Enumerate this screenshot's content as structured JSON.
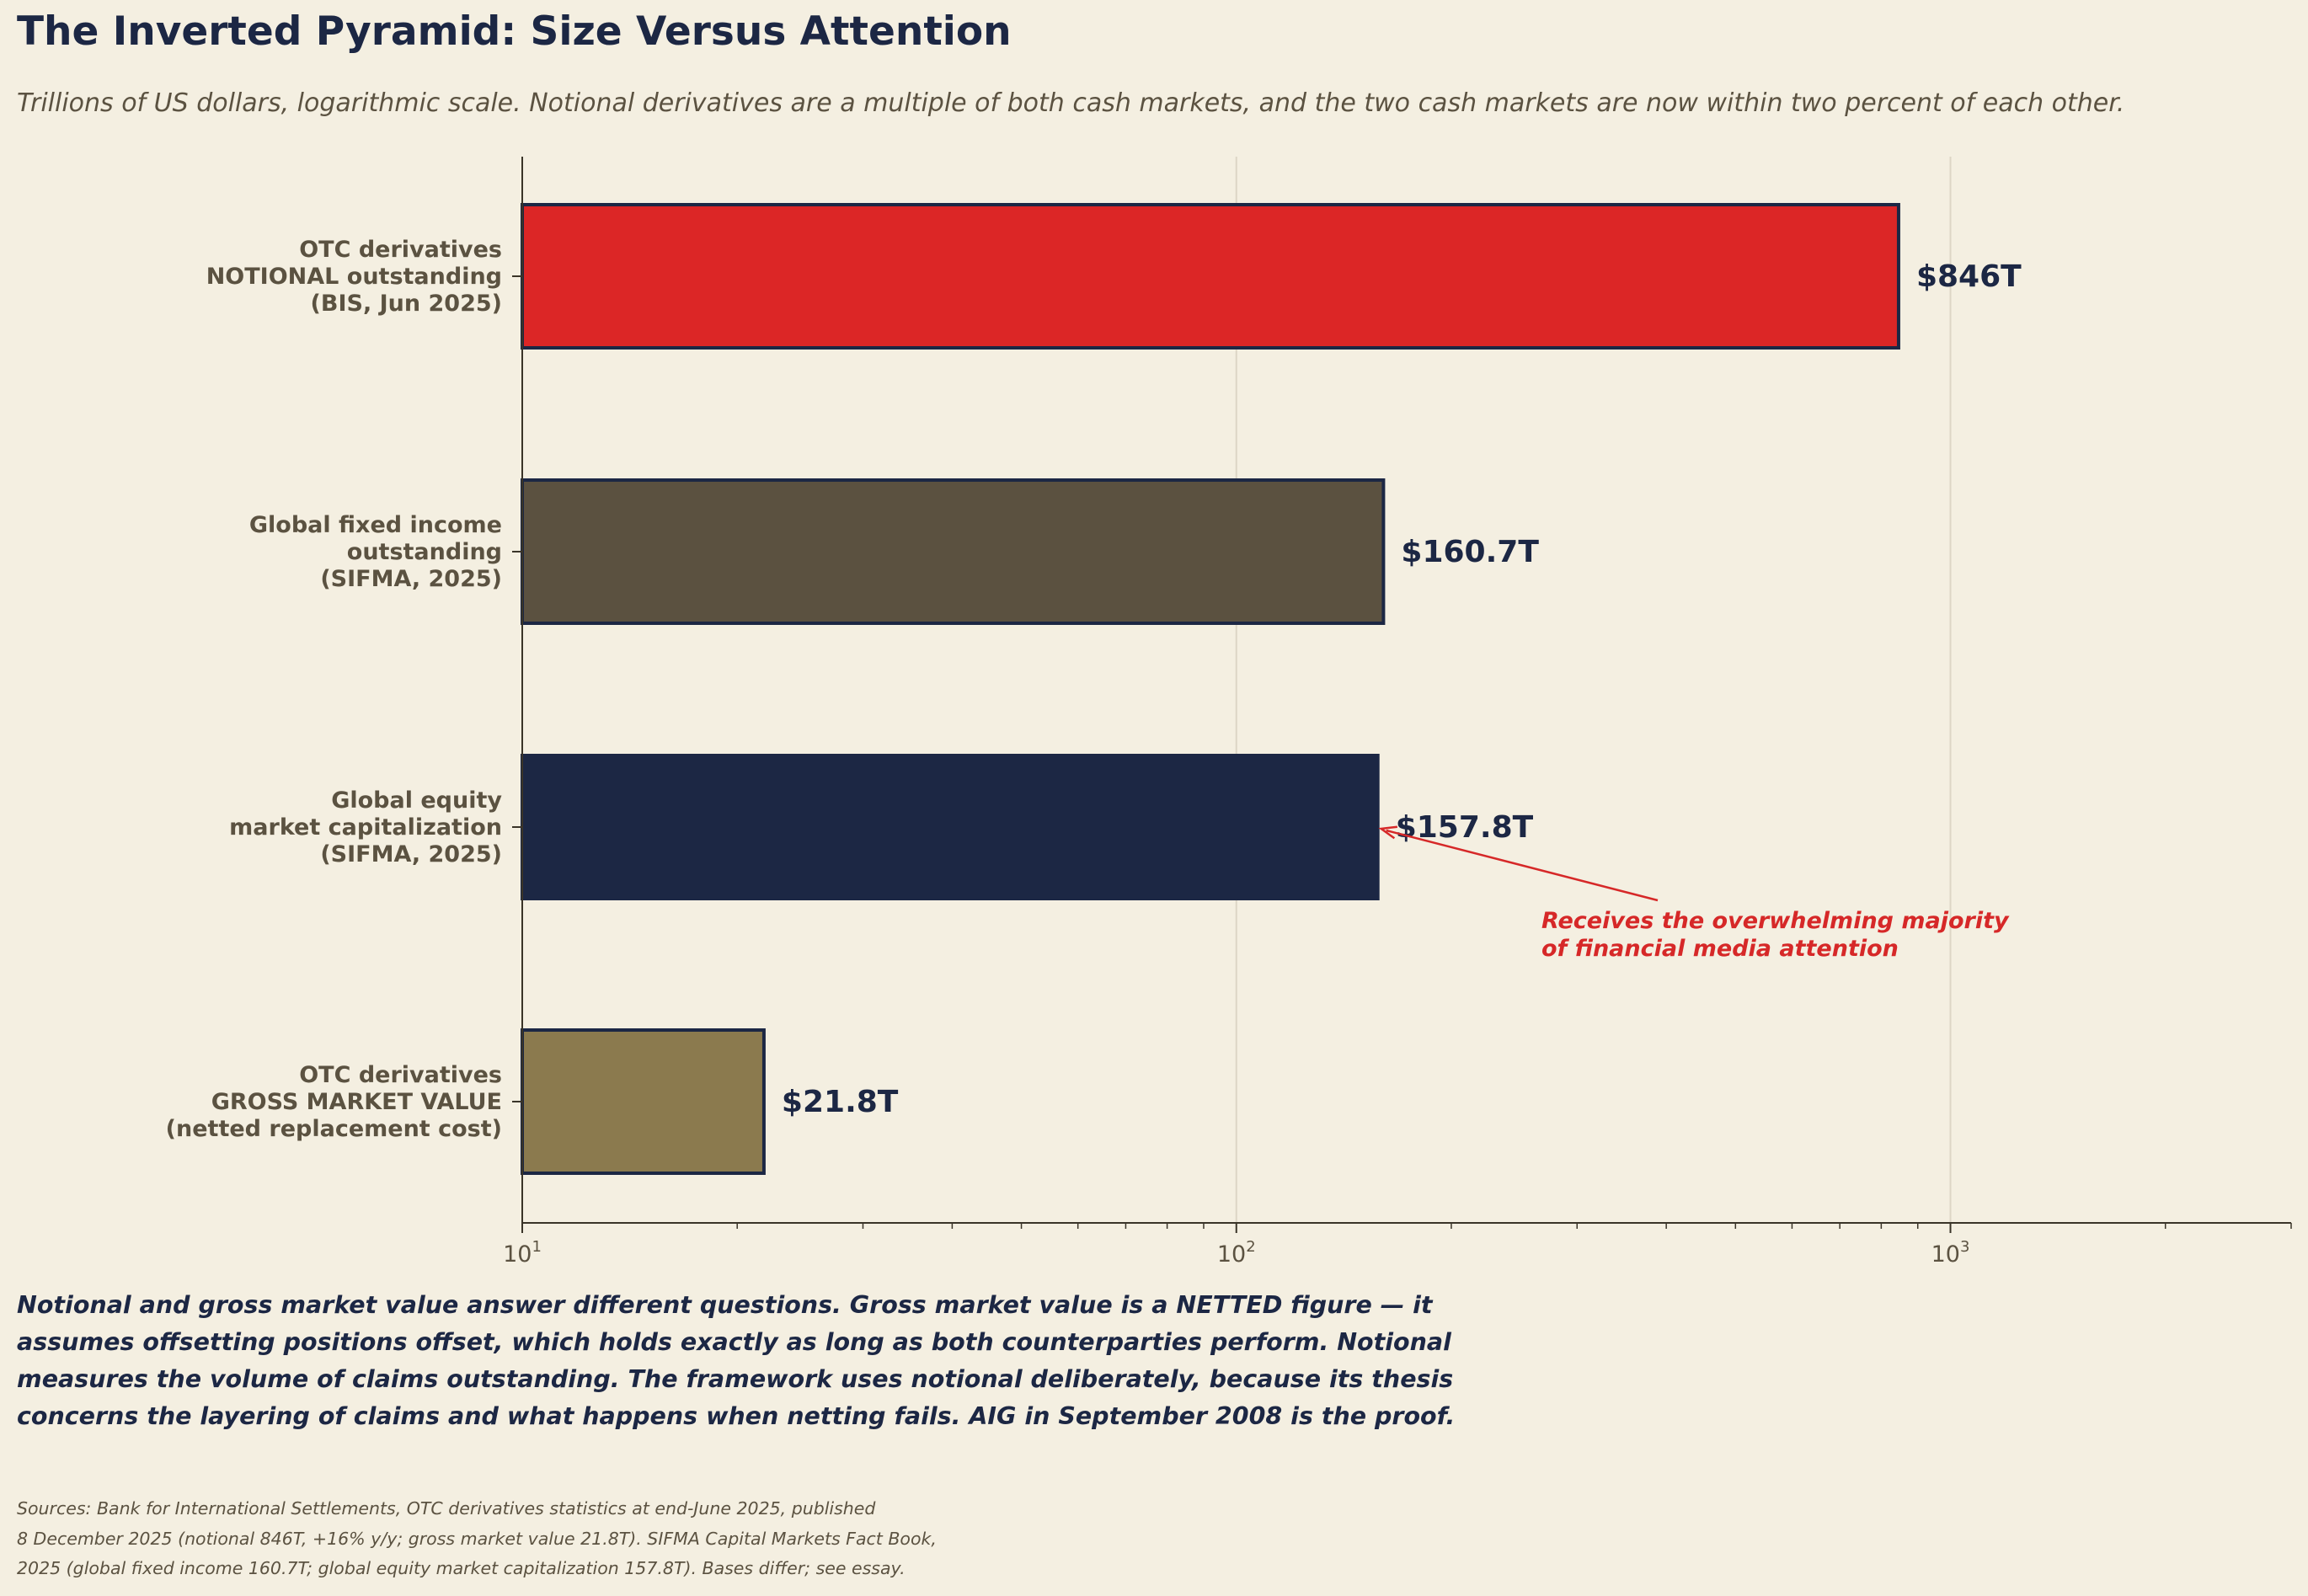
{
  "title": "The Inverted Pyramid: Size Versus Attention",
  "subtitle": "Trillions of US dollars, logarithmic scale. Notional derivatives are a multiple of both cash markets, and the two cash markets are now within two percent of each other.",
  "chart_data": {
    "type": "bar",
    "orientation": "horizontal",
    "xscale": "log",
    "xlim": [
      10,
      3000
    ],
    "grid": "x-major",
    "categories": [
      [
        "OTC derivatives",
        "NOTIONAL outstanding",
        "(BIS, Jun 2025)"
      ],
      [
        "Global fixed income",
        "outstanding",
        "(SIFMA, 2025)"
      ],
      [
        "Global equity",
        "market capitalization",
        "(SIFMA, 2025)"
      ],
      [
        "OTC derivatives",
        "GROSS MARKET VALUE",
        "(netted replacement cost)"
      ]
    ],
    "values": [
      846,
      160.7,
      157.8,
      21.8
    ],
    "value_labels": [
      "$846T",
      "$160.7T",
      "$157.8T",
      "$21.8T"
    ],
    "colors": [
      "#dc2626",
      "#5b5140",
      "#1c2744",
      "#8b7a4e"
    ],
    "x_ticks": [
      {
        "value": 10,
        "base": "10",
        "exp": "1"
      },
      {
        "value": 100,
        "base": "10",
        "exp": "2"
      },
      {
        "value": 1000,
        "base": "10",
        "exp": "3"
      }
    ],
    "annotation": {
      "target_index": 2,
      "lines": [
        "Receives the overwhelming majority",
        "of financial media attention"
      ],
      "color": "#d62828"
    }
  },
  "note_lines": [
    "Notional and gross market value answer different questions. Gross market value is a NETTED figure — it",
    "assumes offsetting positions offset, which holds exactly as long as both counterparties perform. Notional",
    "measures the volume of claims outstanding. The framework uses notional deliberately, because its thesis",
    "concerns the layering of claims and what happens when netting fails. AIG in September 2008 is the proof."
  ],
  "source_lines": [
    "Sources: Bank for International Settlements, OTC derivatives statistics at end-June 2025, published",
    "8 December 2025 (notional 846T, +16% y/y; gross market value 21.8T). SIFMA Capital Markets Fact Book,",
    "2025 (global fixed income 160.7T; global equity market capitalization 157.8T). Bases differ; see essay."
  ]
}
